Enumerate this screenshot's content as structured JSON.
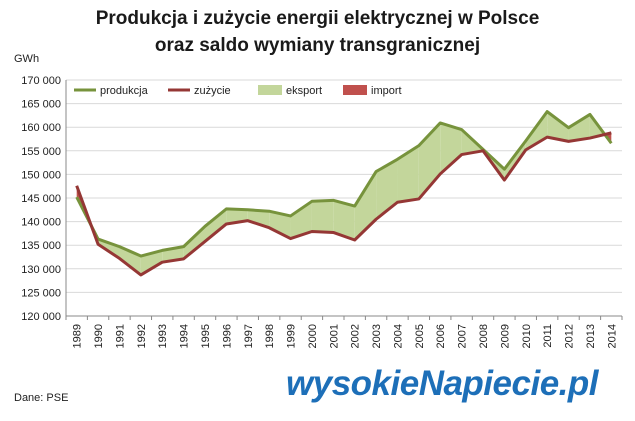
{
  "header": {
    "title_line1": "Produkcja  i zużycie energii elektrycznej w Polsce",
    "title_line2": "oraz saldo wymiany transgranicznej"
  },
  "footer": {
    "source": "Dane: PSE",
    "logo_text": "wysokieNapiecie.pl"
  },
  "colors": {
    "produkcja": "#77933c",
    "zuzycie": "#953735",
    "eksport": "#c3d69b",
    "import": "#c0504d",
    "grid": "#d9d9d9",
    "logo": "#1d6fb8"
  },
  "chart_data": {
    "type": "line",
    "title": "Produkcja  i zużycie energii elektrycznej w Polsce oraz saldo wymiany transgranicznej",
    "ylabel": "GWh",
    "xlabel": "",
    "ylim": [
      120000,
      170000
    ],
    "ytick_step": 5000,
    "ytick_labels": [
      "120 000",
      "125 000",
      "130 000",
      "135 000",
      "140 000",
      "145 000",
      "150 000",
      "155 000",
      "160 000",
      "165 000",
      "170 000"
    ],
    "grid": true,
    "legend_position": "top",
    "x": [
      "1989",
      "1990",
      "1991",
      "1992",
      "1993",
      "1994",
      "1995",
      "1996",
      "1997",
      "1998",
      "1999",
      "2000",
      "2001",
      "2002",
      "2003",
      "2004",
      "2005",
      "2006",
      "2007",
      "2008",
      "2009",
      "2010",
      "2011",
      "2012",
      "2013",
      "2014"
    ],
    "series": [
      {
        "name": "produkcja",
        "values": [
          145200,
          136300,
          134700,
          132700,
          133900,
          134700,
          139000,
          142700,
          142500,
          142200,
          141200,
          144300,
          144500,
          143300,
          150600,
          153200,
          156100,
          160900,
          159500,
          155300,
          151100,
          157100,
          163300,
          159900,
          162700,
          156600
        ]
      },
      {
        "name": "zużycie",
        "values": [
          147600,
          135200,
          132200,
          128700,
          131400,
          132100,
          135800,
          139500,
          140200,
          138700,
          136400,
          137900,
          137700,
          136100,
          140500,
          144100,
          144800,
          150100,
          154200,
          155000,
          148800,
          155200,
          157900,
          157000,
          157700,
          158800
        ]
      }
    ],
    "legend": [
      "produkcja",
      "zużycie",
      "eksport",
      "import"
    ]
  }
}
